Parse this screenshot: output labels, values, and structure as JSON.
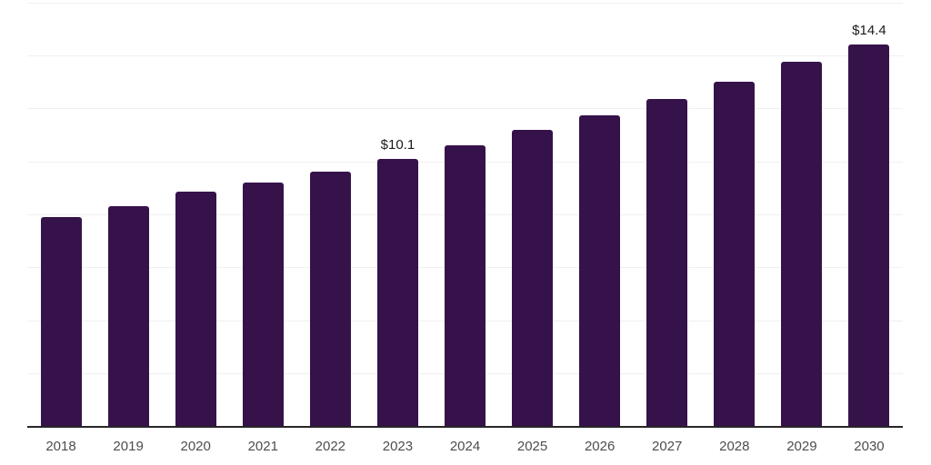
{
  "chart_data": {
    "type": "bar",
    "title": "",
    "xlabel": "",
    "ylabel": "",
    "categories": [
      "2018",
      "2019",
      "2020",
      "2021",
      "2022",
      "2023",
      "2024",
      "2025",
      "2026",
      "2027",
      "2028",
      "2029",
      "2030"
    ],
    "values": [
      7.9,
      8.3,
      8.85,
      9.2,
      9.6,
      10.1,
      10.6,
      11.2,
      11.75,
      12.35,
      13.0,
      13.75,
      14.4
    ],
    "value_labels": {
      "2023": "$10.1",
      "2030": "$14.4"
    },
    "ylim": [
      0,
      16
    ],
    "gridline_step": 2,
    "grid": true,
    "legend": "none",
    "bar_color": "#36124B",
    "gridline_color": "#f0f0f0",
    "axis_line_color": "#262626",
    "tick_label_color": "#4d4d4d",
    "data_label_color": "#1a1a1a",
    "background_color": "#ffffff"
  }
}
